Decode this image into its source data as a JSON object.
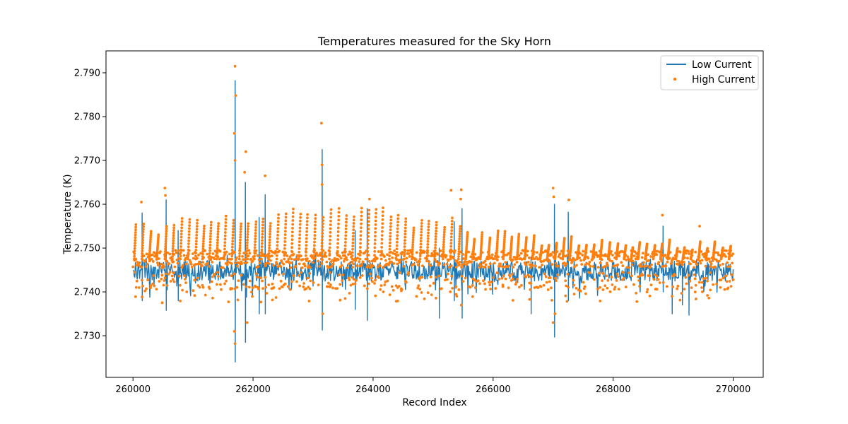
{
  "chart_data": {
    "type": "line+scatter",
    "title": "Temperatures measured for the Sky Horn",
    "xlabel": "Record Index",
    "ylabel": "Temperature (K)",
    "xlim": [
      259550,
      270500
    ],
    "ylim": [
      2.7205,
      2.795
    ],
    "xticks": [
      260000,
      262000,
      264000,
      266000,
      268000,
      270000
    ],
    "xtick_labels": [
      "260000",
      "262000",
      "264000",
      "266000",
      "268000",
      "270000"
    ],
    "yticks": [
      2.73,
      2.74,
      2.75,
      2.76,
      2.77,
      2.78,
      2.79
    ],
    "ytick_labels": [
      "2.730",
      "2.740",
      "2.750",
      "2.760",
      "2.770",
      "2.780",
      "2.790"
    ],
    "legend": {
      "placement": "top-right",
      "entries": [
        "Low Current",
        "High Current"
      ]
    },
    "colors": {
      "low": "#1f77b4",
      "high": "#ff7f0e"
    },
    "series": [
      {
        "name": "Low Current",
        "kind": "line",
        "x_start": 260000,
        "x_end": 270000,
        "baseline": 2.7445,
        "band_low": 2.7425,
        "band_high": 2.747,
        "spikes": [
          {
            "x": 260150,
            "hi": 2.758,
            "lo": 2.738
          },
          {
            "x": 260550,
            "hi": 2.761,
            "lo": 2.7358
          },
          {
            "x": 260750,
            "hi": 2.754,
            "lo": 2.738
          },
          {
            "x": 261700,
            "hi": 2.7882,
            "lo": 2.724
          },
          {
            "x": 261870,
            "hi": 2.765,
            "lo": 2.7285
          },
          {
            "x": 262100,
            "hi": 2.757,
            "lo": 2.735
          },
          {
            "x": 262200,
            "hi": 2.7622,
            "lo": 2.735
          },
          {
            "x": 263150,
            "hi": 2.7725,
            "lo": 2.7313
          },
          {
            "x": 263700,
            "hi": 2.754,
            "lo": 2.736
          },
          {
            "x": 263900,
            "hi": 2.759,
            "lo": 2.7335
          },
          {
            "x": 265100,
            "hi": 2.75,
            "lo": 2.734
          },
          {
            "x": 265350,
            "hi": 2.756,
            "lo": 2.738
          },
          {
            "x": 265480,
            "hi": 2.759,
            "lo": 2.734
          },
          {
            "x": 266630,
            "hi": 2.748,
            "lo": 2.735
          },
          {
            "x": 267020,
            "hi": 2.76,
            "lo": 2.7297
          },
          {
            "x": 267250,
            "hi": 2.7582,
            "lo": 2.738
          },
          {
            "x": 268830,
            "hi": 2.755,
            "lo": 2.74
          },
          {
            "x": 268980,
            "hi": 2.747,
            "lo": 2.735
          },
          {
            "x": 269150,
            "hi": 2.747,
            "lo": 2.737
          },
          {
            "x": 269260,
            "hi": 2.747,
            "lo": 2.7347
          }
        ]
      },
      {
        "name": "High Current",
        "kind": "scatter",
        "x_start": 260000,
        "x_end": 270000,
        "baseline": 2.7475,
        "band_low": 2.7455,
        "band_high": 2.7495,
        "ramp_levels": [
          {
            "x0": 260000,
            "x1": 260600,
            "top": 2.7555
          },
          {
            "x0": 260600,
            "x1": 261500,
            "top": 2.7568
          },
          {
            "x0": 261500,
            "x1": 262500,
            "top": 2.758
          },
          {
            "x0": 262500,
            "x1": 264500,
            "top": 2.7592
          },
          {
            "x0": 264500,
            "x1": 265500,
            "top": 2.757
          },
          {
            "x0": 265500,
            "x1": 266700,
            "top": 2.754
          },
          {
            "x0": 266700,
            "x1": 268000,
            "top": 2.753
          },
          {
            "x0": 268000,
            "x1": 270000,
            "top": 2.752
          }
        ],
        "outliers": [
          {
            "x": 261700,
            "y": 2.7915
          },
          {
            "x": 261710,
            "y": 2.7848
          },
          {
            "x": 261690,
            "y": 2.7762
          },
          {
            "x": 261700,
            "y": 2.77
          },
          {
            "x": 261700,
            "y": 2.7282
          },
          {
            "x": 261690,
            "y": 2.731
          },
          {
            "x": 261880,
            "y": 2.772
          },
          {
            "x": 261860,
            "y": 2.7673
          },
          {
            "x": 261900,
            "y": 2.733
          },
          {
            "x": 262200,
            "y": 2.7665
          },
          {
            "x": 263140,
            "y": 2.7785
          },
          {
            "x": 263150,
            "y": 2.769
          },
          {
            "x": 263150,
            "y": 2.7645
          },
          {
            "x": 263160,
            "y": 2.735
          },
          {
            "x": 263940,
            "y": 2.7612
          },
          {
            "x": 260530,
            "y": 2.7637
          },
          {
            "x": 260540,
            "y": 2.762
          },
          {
            "x": 260140,
            "y": 2.7605
          },
          {
            "x": 265300,
            "y": 2.7632
          },
          {
            "x": 265470,
            "y": 2.7633
          },
          {
            "x": 265460,
            "y": 2.7612
          },
          {
            "x": 265470,
            "y": 2.737
          },
          {
            "x": 267000,
            "y": 2.7637
          },
          {
            "x": 267010,
            "y": 2.7617
          },
          {
            "x": 267000,
            "y": 2.733
          },
          {
            "x": 267030,
            "y": 2.735
          },
          {
            "x": 267260,
            "y": 2.761
          },
          {
            "x": 268820,
            "y": 2.7575
          },
          {
            "x": 268980,
            "y": 2.739
          },
          {
            "x": 269440,
            "y": 2.755
          }
        ]
      }
    ]
  }
}
